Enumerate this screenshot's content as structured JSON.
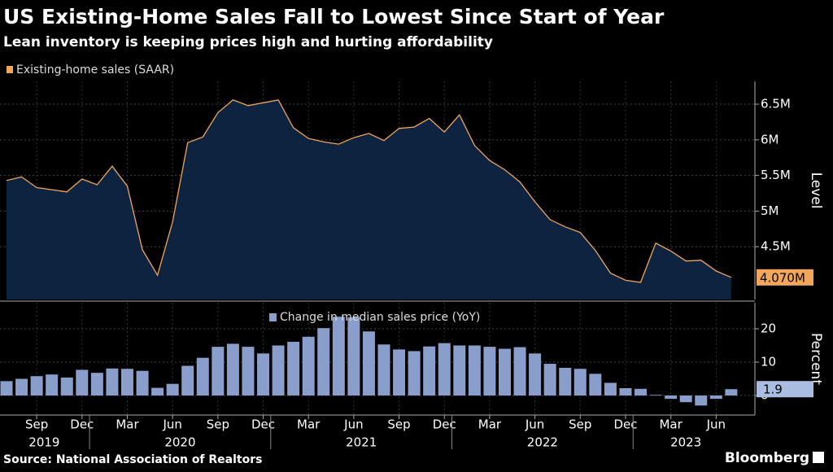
{
  "title": "US Existing-Home Sales Fall to Lowest Since Start of Year",
  "subtitle": "Lean inventory is keeping prices high and hurting affordability",
  "source": "Source: National Association of Realtors",
  "brand": "Bloomberg",
  "chart_data": [
    {
      "type": "area",
      "y_label": "Level",
      "x": [
        "2019-07",
        "2019-08",
        "2019-09",
        "2019-10",
        "2019-11",
        "2019-12",
        "2020-01",
        "2020-02",
        "2020-03",
        "2020-04",
        "2020-05",
        "2020-06",
        "2020-07",
        "2020-08",
        "2020-09",
        "2020-10",
        "2020-11",
        "2020-12",
        "2021-01",
        "2021-02",
        "2021-03",
        "2021-04",
        "2021-05",
        "2021-06",
        "2021-07",
        "2021-08",
        "2021-09",
        "2021-10",
        "2021-11",
        "2021-12",
        "2022-01",
        "2022-02",
        "2022-03",
        "2022-04",
        "2022-05",
        "2022-06",
        "2022-07",
        "2022-08",
        "2022-09",
        "2022-10",
        "2022-11",
        "2022-12",
        "2023-01",
        "2023-02",
        "2023-03",
        "2023-04",
        "2023-05",
        "2023-06",
        "2023-07"
      ],
      "series": [
        {
          "name": "Existing-home sales (SAAR)",
          "color": "#f2a65a",
          "fill": "#0d2340",
          "values": [
            5.43,
            5.48,
            5.33,
            5.3,
            5.27,
            5.45,
            5.37,
            5.63,
            5.35,
            4.46,
            4.1,
            4.85,
            5.96,
            6.04,
            6.38,
            6.56,
            6.48,
            6.52,
            6.56,
            6.17,
            6.02,
            5.97,
            5.94,
            6.03,
            6.09,
            5.99,
            6.16,
            6.18,
            6.3,
            6.11,
            6.35,
            5.92,
            5.71,
            5.58,
            5.41,
            5.13,
            4.88,
            4.78,
            4.7,
            4.45,
            4.13,
            4.03,
            4.0,
            4.55,
            4.44,
            4.3,
            4.31,
            4.16,
            4.07
          ]
        }
      ],
      "last_label": "4.070M",
      "ylim": [
        3.76,
        6.82
      ],
      "yticks": [
        {
          "value": 4.5,
          "label": "4.5M"
        },
        {
          "value": 5,
          "label": "5M"
        },
        {
          "value": 5.5,
          "label": "5.5M"
        },
        {
          "value": 6,
          "label": "6M"
        },
        {
          "value": 6.5,
          "label": "6.5M"
        }
      ],
      "grid": true
    },
    {
      "type": "bar",
      "y_label": "Percent",
      "x": [
        "2019-07",
        "2019-08",
        "2019-09",
        "2019-10",
        "2019-11",
        "2019-12",
        "2020-01",
        "2020-02",
        "2020-03",
        "2020-04",
        "2020-05",
        "2020-06",
        "2020-07",
        "2020-08",
        "2020-09",
        "2020-10",
        "2020-11",
        "2020-12",
        "2021-01",
        "2021-02",
        "2021-03",
        "2021-04",
        "2021-05",
        "2021-06",
        "2021-07",
        "2021-08",
        "2021-09",
        "2021-10",
        "2021-11",
        "2021-12",
        "2022-01",
        "2022-02",
        "2022-03",
        "2022-04",
        "2022-05",
        "2022-06",
        "2022-07",
        "2022-08",
        "2022-09",
        "2022-10",
        "2022-11",
        "2022-12",
        "2023-01",
        "2023-02",
        "2023-03",
        "2023-04",
        "2023-05",
        "2023-06",
        "2023-07"
      ],
      "series": [
        {
          "name": "Change in median sales price (YoY)",
          "color": "#8a9ecb",
          "values": [
            4.3,
            5.0,
            5.8,
            6.3,
            5.4,
            7.7,
            6.8,
            8.1,
            8.0,
            7.4,
            2.3,
            3.5,
            8.9,
            11.3,
            14.6,
            15.5,
            14.6,
            12.6,
            15.0,
            16.1,
            17.6,
            20.2,
            23.6,
            23.4,
            19.2,
            15.3,
            13.8,
            13.3,
            14.7,
            15.7,
            15.0,
            15.0,
            14.6,
            14.0,
            14.5,
            12.6,
            9.5,
            8.3,
            8.0,
            6.5,
            3.8,
            2.2,
            2.0,
            0.2,
            -1.0,
            -2.0,
            -3.0,
            -1.0,
            1.9
          ]
        }
      ],
      "ylim": [
        -5.85,
        27.8
      ],
      "yticks": [
        0,
        10,
        20
      ],
      "xticks": [
        {
          "value": "2019-09",
          "label": "Sep"
        },
        {
          "value": "2019-12",
          "label": "Dec"
        },
        {
          "value": "2020-03",
          "label": "Mar"
        },
        {
          "value": "2020-06",
          "label": "Jun"
        },
        {
          "value": "2020-09",
          "label": "Sep"
        },
        {
          "value": "2020-12",
          "label": "Dec"
        },
        {
          "value": "2021-03",
          "label": "Mar"
        },
        {
          "value": "2021-06",
          "label": "Jun"
        },
        {
          "value": "2021-09",
          "label": "Sep"
        },
        {
          "value": "2021-12",
          "label": "Dec"
        },
        {
          "value": "2022-03",
          "label": "Mar"
        },
        {
          "value": "2022-06",
          "label": "Jun"
        },
        {
          "value": "2022-09",
          "label": "Sep"
        },
        {
          "value": "2022-12",
          "label": "Dec"
        },
        {
          "value": "2023-03",
          "label": "Mar"
        },
        {
          "value": "2023-06",
          "label": "Jun"
        }
      ],
      "year_labels": [
        "2019",
        "2020",
        "2021",
        "2022",
        "2023"
      ],
      "grid": true
    }
  ]
}
